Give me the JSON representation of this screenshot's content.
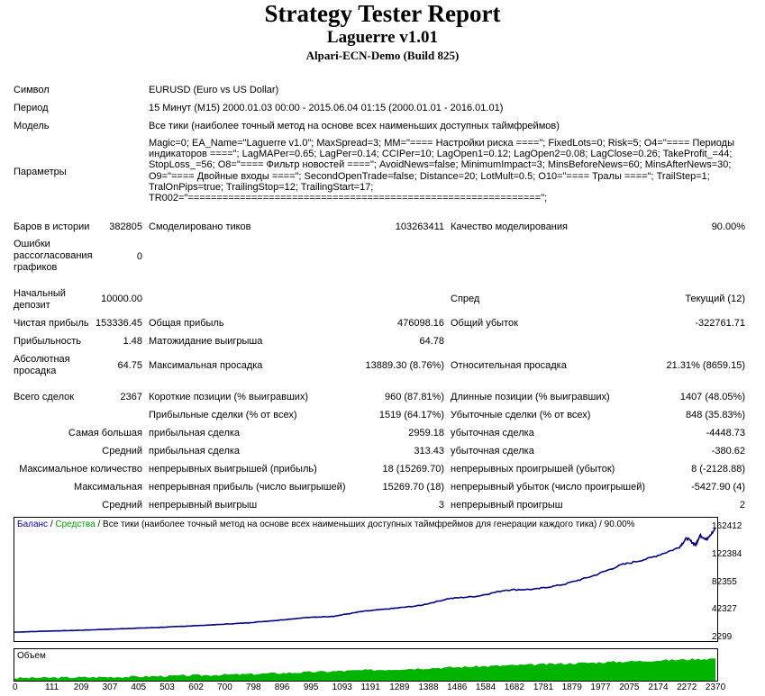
{
  "header": {
    "title": "Strategy Tester Report",
    "ea_name": "Laguerre v1.01",
    "server": "Alpari-ECN-Demo (Build 825)"
  },
  "info": {
    "symbol_label": "Символ",
    "symbol_value": "EURUSD (Euro vs US Dollar)",
    "period_label": "Период",
    "period_value": "15 Минут (M15) 2000.01.03 00:00 - 2015.06.04 01:15 (2000.01.01 - 2016.01.01)",
    "model_label": "Модель",
    "model_value": "Все тики (наиболее точный метод на основе всех наименьших доступных таймфреймов)",
    "params_label": "Параметры",
    "params_value": "Magic=0; EA_Name=\"Laguerre v1.0\"; MaxSpread=3; MM=\"==== Настройки риска ====\"; FixedLots=0; Risk=5; O4=\"==== Периоды индикаторов ====\"; LagMAPer=0.65; LagPer=0.14; CCIPer=10; LagOpen1=0.12; LagOpen2=0.08; LagClose=0.26; TakeProfit_=44; StopLoss_=56; O8=\"==== Фильтр новостей ====\"; AvoidNews=false; MinimumImpact=3; MinsBeforeNews=60; MinsAfterNews=30; O9=\"==== Двойные входы ====\"; SecondOpenTrade=false; Distance=20; LotMult=0.5; O10=\"==== Тралы ====\"; TrailStep=1; TralOnPips=true; TrailingStop=12; TrailingStart=17; TR002=\"=============================================================\";"
  },
  "stats": {
    "bars_label": "Баров в истории",
    "bars_value": "382805",
    "ticks_label": "Смоделировано тиков",
    "ticks_value": "103263411",
    "quality_label": "Качество моделирования",
    "quality_value": "90.00%",
    "errors_label": "Ошибки рассогласования графиков",
    "errors_value": "0",
    "deposit_label": "Начальный депозит",
    "deposit_value": "10000.00",
    "spread_label": "Спред",
    "spread_value": "Текущий (12)",
    "net_profit_label": "Чистая прибыль",
    "net_profit_value": "153336.45",
    "gross_profit_label": "Общая прибыль",
    "gross_profit_value": "476098.16",
    "gross_loss_label": "Общий убыток",
    "gross_loss_value": "-322761.71",
    "profit_factor_label": "Прибыльность",
    "profit_factor_value": "1.48",
    "expected_payoff_label": "Матожидание выигрыша",
    "expected_payoff_value": "64.78",
    "abs_dd_label": "Абсолютная просадка",
    "abs_dd_value": "64.75",
    "max_dd_label": "Максимальная просадка",
    "max_dd_value": "13889.30 (8.76%)",
    "rel_dd_label": "Относительная просадка",
    "rel_dd_value": "21.31% (8659.15)",
    "total_trades_label": "Всего сделок",
    "total_trades_value": "2367",
    "short_label": "Короткие позиции (% выигравших)",
    "short_value": "960 (87.81%)",
    "long_label": "Длинные позиции (% выигравших)",
    "long_value": "1407 (48.05%)",
    "profit_trades_label": "Прибыльные сделки (% от всех)",
    "profit_trades_value": "1519 (64.17%)",
    "loss_trades_label": "Убыточные сделки (% от всех)",
    "loss_trades_value": "848 (35.83%)",
    "largest_label": "Самая большая",
    "largest_profit_label": "прибыльная сделка",
    "largest_profit_value": "2959.18",
    "largest_loss_label": "убыточная сделка",
    "largest_loss_value": "-4448.73",
    "average_label": "Средний",
    "avg_profit_label": "прибыльная сделка",
    "avg_profit_value": "313.43",
    "avg_loss_label": "убыточная сделка",
    "avg_loss_value": "-380.62",
    "max_count_label": "Максимальное количество",
    "max_cons_wins_label": "непрерывных выигрышей (прибыль)",
    "max_cons_wins_value": "18 (15269.70)",
    "max_cons_losses_label": "непрерывных проигрышей (убыток)",
    "max_cons_losses_value": "8 (-2128.88)",
    "maximal_label": "Максимальная",
    "max_cons_profit_label": "непрерывная прибыль (число выигрышей)",
    "max_cons_profit_value": "15269.70 (18)",
    "max_cons_loss_label": "непрерывный убыток (число проигрышей)",
    "max_cons_loss_value": "-5427.90 (4)",
    "avg_cons_label": "Средний",
    "avg_cons_wins_label": "непрерывный выигрыш",
    "avg_cons_wins_value": "3",
    "avg_cons_losses_label": "непрерывный проигрыш",
    "avg_cons_losses_value": "2"
  },
  "chart": {
    "legend_balance": "Баланс",
    "legend_sep1": " / ",
    "legend_equity": "Средства",
    "legend_rest": " / Все тики (наиболее точный метод на основе всех наименьших доступных таймфреймов для генерации каждого тика) / 90.00%",
    "volume_label": "Объем",
    "colors": {
      "balance": "#000080",
      "equity": "#00a000",
      "volume": "#00b400",
      "legend_balance": "#0000c0",
      "legend_equity": "#00a000"
    },
    "y_ticks": [
      "162412",
      "122384",
      "82355",
      "42327",
      "2299"
    ],
    "x_ticks": [
      "0",
      "111",
      "209",
      "307",
      "405",
      "503",
      "602",
      "700",
      "798",
      "896",
      "995",
      "1093",
      "1191",
      "1289",
      "1388",
      "1486",
      "1584",
      "1682",
      "1781",
      "1879",
      "1977",
      "2075",
      "2174",
      "2272",
      "2370"
    ]
  },
  "chart_data": {
    "type": "line",
    "ylim": [
      2299,
      162412
    ],
    "xlim": [
      0,
      2398
    ],
    "series": [
      {
        "name": "Баланс",
        "x": [
          0,
          111,
          209,
          307,
          405,
          503,
          602,
          700,
          798,
          896,
          995,
          1093,
          1191,
          1289,
          1388,
          1486,
          1584,
          1682,
          1781,
          1879,
          1977,
          2075,
          2174,
          2272,
          2300,
          2330,
          2345,
          2370,
          2398
        ],
        "values": [
          10000,
          11500,
          12500,
          14000,
          15500,
          17000,
          19000,
          21000,
          23500,
          27000,
          31000,
          33000,
          40000,
          44000,
          48500,
          58500,
          62000,
          71000,
          72000,
          79000,
          91000,
          107000,
          117000,
          132000,
          146000,
          136000,
          150000,
          144000,
          160000
        ]
      }
    ],
    "volume": {
      "x": [
        0,
        400,
        800,
        1200,
        1600,
        2000,
        2398
      ],
      "values": [
        0.1,
        0.15,
        0.25,
        0.4,
        0.55,
        0.7,
        0.85
      ]
    }
  }
}
